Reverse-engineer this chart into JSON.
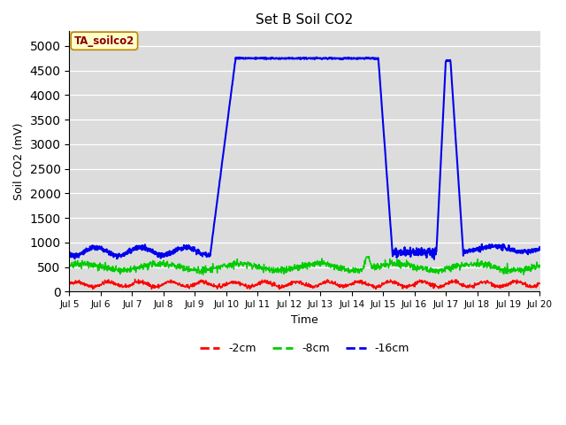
{
  "title": "Set B Soil CO2",
  "ylabel": "Soil CO2 (mV)",
  "xlabel": "Time",
  "ylim": [
    0,
    5300
  ],
  "yticks": [
    0,
    500,
    1000,
    1500,
    2000,
    2500,
    3000,
    3500,
    4000,
    4500,
    5000
  ],
  "plot_bg_color": "#dcdcdc",
  "fig_bg_color": "#ffffff",
  "legend_label": "TA_soilco2",
  "legend_box_color": "#ffffcc",
  "legend_box_edge": "#bb8800",
  "series": {
    "red": {
      "label": "-2cm",
      "color": "#ff0000",
      "linewidth": 1.0
    },
    "green": {
      "label": "-8cm",
      "color": "#00cc00",
      "linewidth": 1.0
    },
    "blue": {
      "label": "-16cm",
      "color": "#0000ee",
      "linewidth": 1.5
    }
  },
  "start_day": 5,
  "end_day": 20,
  "xtick_days": [
    5,
    6,
    7,
    8,
    9,
    10,
    11,
    12,
    13,
    14,
    15,
    16,
    17,
    18,
    19,
    20
  ]
}
